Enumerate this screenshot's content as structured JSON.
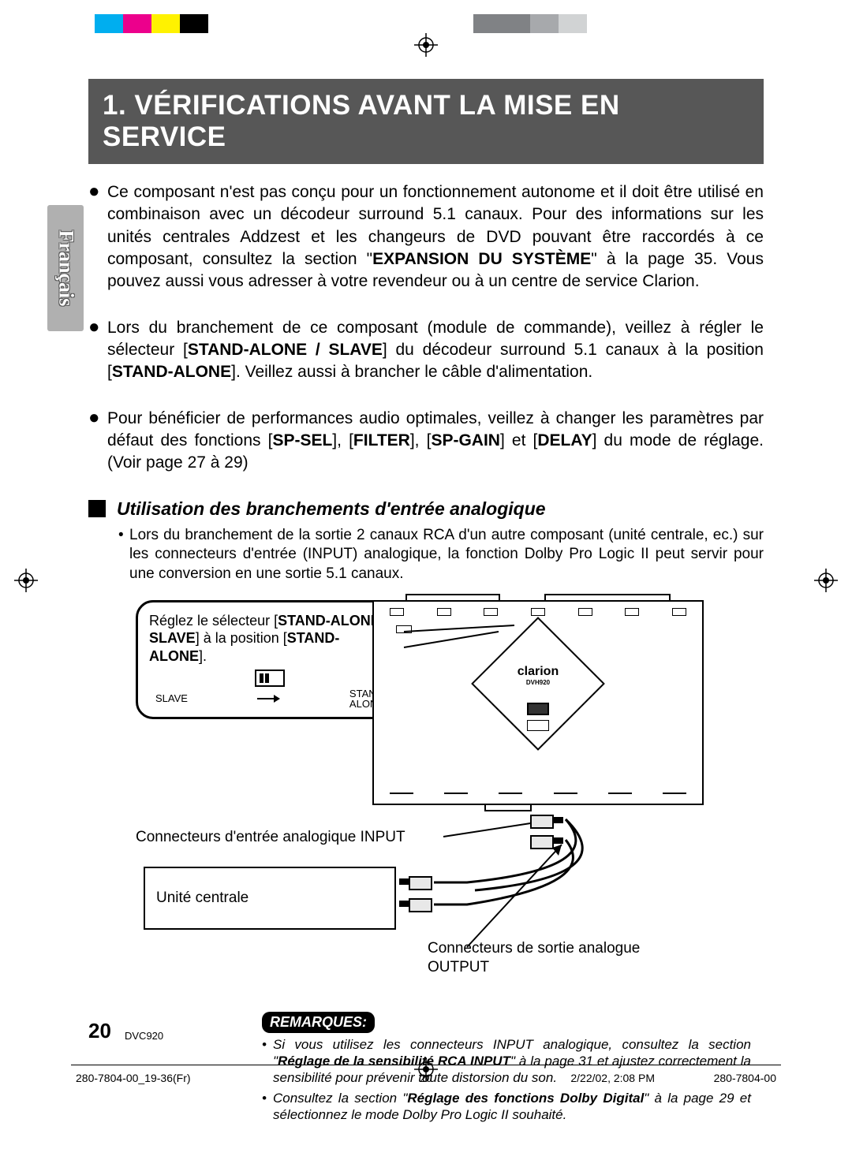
{
  "regbar": {
    "colors_left": [
      "#00aeef",
      "#ec008c",
      "#fff200",
      "#000000"
    ],
    "colors_right": [
      "#808285",
      "#808285",
      "#a7a9ac",
      "#d1d3d4"
    ]
  },
  "lang_tab": "Français",
  "title": "1. VÉRIFICATIONS AVANT LA MISE EN SERVICE",
  "bullets": [
    "Ce composant n'est pas conçu pour un fonctionnement autonome et il doit être utilisé en combinaison avec un décodeur surround 5.1 canaux. Pour des informations sur les unités centrales Addzest et les changeurs de DVD pouvant être raccordés à ce composant, consultez la section \"<b>EXPANSION DU SYSTÈME</b>\" à la page 35. Vous pouvez aussi vous adresser à votre revendeur ou à un centre de service Clarion.",
    "Lors du branchement de ce composant (module de commande), veillez à régler le sélecteur [<b>STAND-ALONE / SLAVE</b>] du décodeur surround 5.1 canaux à la position [<b>STAND-ALONE</b>]. Veillez aussi à brancher le câble d'alimentation.",
    "Pour bénéficier de performances audio optimales, veillez à changer les paramètres par défaut des fonctions [<b>SP-SEL</b>], [<b>FILTER</b>], [<b>SP-GAIN</b>] et [<b>DELAY</b>] du mode de réglage. (Voir page 27 à 29)"
  ],
  "subhead": "Utilisation des branchements d'entrée analogique",
  "sublist": "Lors du branchement de la sortie 2 canaux RCA d'un autre composant (unité centrale, ec.) sur les connecteurs d'entrée (INPUT) analogique, la fonction Dolby Pro Logic II peut servir pour une conversion en une sortie 5.1 canaux.",
  "diagram": {
    "callout1_line1": "Réglez le sélecteur [",
    "callout1_b1": "STAND-ALONE /",
    "callout1_line2_b": "SLAVE",
    "callout1_line2": "] à la position [",
    "callout1_b2": "STAND-ALONE",
    "callout1_line2_end": "].",
    "slave_label": "SLAVE",
    "standalone_label_1": "STAND",
    "standalone_label_2": "ALONE",
    "brand": "clarion",
    "brand_model": "DVH920",
    "label_input": "Connecteurs d'entrée analogique INPUT",
    "label_central": "Unité centrale",
    "label_output_1": "Connecteurs de sortie analogue",
    "label_output_2": "OUTPUT"
  },
  "remarks": {
    "heading": "REMARQUES:",
    "items": [
      "Si vous utilisez les connecteurs INPUT analogique, consultez la section \"<b>Réglage de la sensibilité RCA INPUT</b>\" à la page 31 et ajustez correctement la sensibilité pour prévenir toute distorsion du son.",
      "Consultez la section \"<b>Réglage des fonctions Dolby Digital</b>\" à la page 29 et sélectionnez le mode Dolby Pro Logic II souhaité."
    ]
  },
  "footer": {
    "page_num": "20",
    "model": "DVC920",
    "file": "280-7804-00_19-36(Fr)",
    "pg": "20",
    "date": "2/22/02, 2:08 PM",
    "code": "280-7804-00"
  }
}
